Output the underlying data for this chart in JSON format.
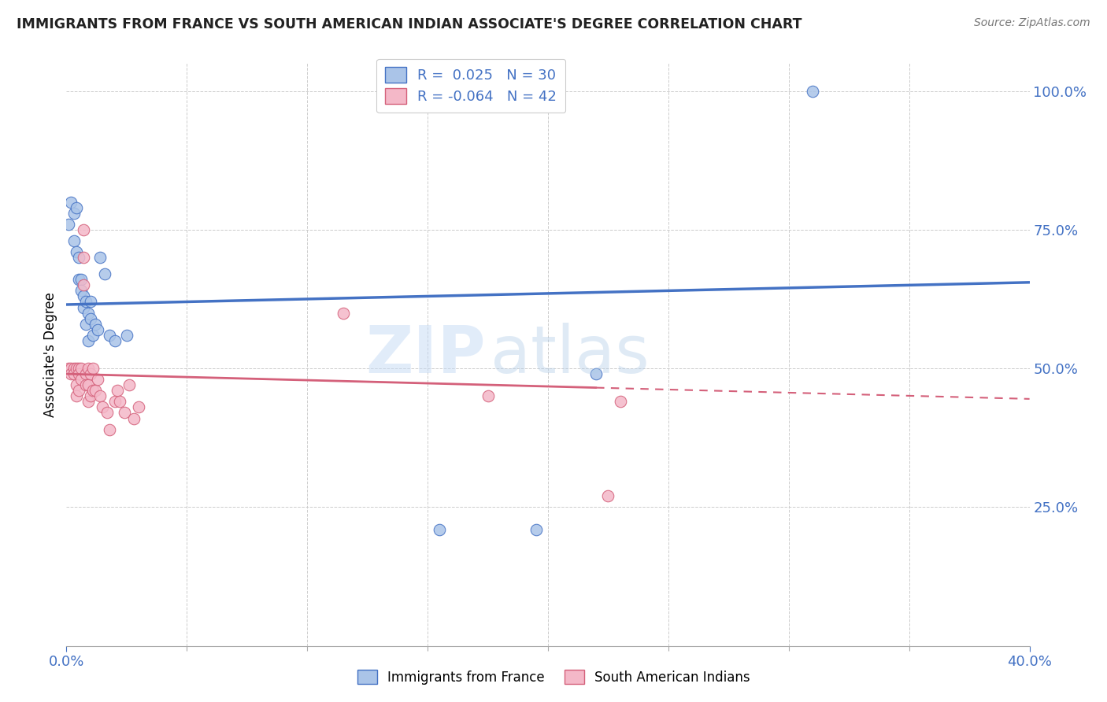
{
  "title": "IMMIGRANTS FROM FRANCE VS SOUTH AMERICAN INDIAN ASSOCIATE'S DEGREE CORRELATION CHART",
  "source": "Source: ZipAtlas.com",
  "ylabel": "Associate's Degree",
  "xlim": [
    0.0,
    0.4
  ],
  "ylim": [
    0.0,
    1.05
  ],
  "xtick_labels": [
    "0.0%",
    "40.0%"
  ],
  "ytick_labels": [
    "25.0%",
    "50.0%",
    "75.0%",
    "100.0%"
  ],
  "ytick_positions": [
    0.25,
    0.5,
    0.75,
    1.0
  ],
  "france_color": "#aac4e8",
  "france_color_line": "#4472c4",
  "india_color": "#f4b8c8",
  "india_color_line": "#d4607a",
  "france_R": 0.025,
  "france_N": 30,
  "india_R": -0.064,
  "india_N": 42,
  "watermark_zip": "ZIP",
  "watermark_atlas": "atlas",
  "france_x": [
    0.001,
    0.002,
    0.003,
    0.003,
    0.004,
    0.004,
    0.005,
    0.005,
    0.006,
    0.006,
    0.007,
    0.007,
    0.008,
    0.008,
    0.009,
    0.009,
    0.01,
    0.01,
    0.011,
    0.012,
    0.013,
    0.014,
    0.016,
    0.018,
    0.02,
    0.025,
    0.155,
    0.195,
    0.22,
    0.31
  ],
  "france_y": [
    0.76,
    0.8,
    0.78,
    0.73,
    0.79,
    0.71,
    0.7,
    0.66,
    0.66,
    0.64,
    0.63,
    0.61,
    0.62,
    0.58,
    0.6,
    0.55,
    0.62,
    0.59,
    0.56,
    0.58,
    0.57,
    0.7,
    0.67,
    0.56,
    0.55,
    0.56,
    0.21,
    0.21,
    0.49,
    1.0
  ],
  "india_x": [
    0.001,
    0.002,
    0.002,
    0.003,
    0.003,
    0.004,
    0.004,
    0.004,
    0.005,
    0.005,
    0.005,
    0.006,
    0.006,
    0.007,
    0.007,
    0.007,
    0.008,
    0.008,
    0.009,
    0.009,
    0.009,
    0.01,
    0.01,
    0.011,
    0.011,
    0.012,
    0.013,
    0.014,
    0.015,
    0.017,
    0.018,
    0.02,
    0.021,
    0.022,
    0.024,
    0.026,
    0.028,
    0.03,
    0.115,
    0.175,
    0.225,
    0.23
  ],
  "india_y": [
    0.5,
    0.5,
    0.49,
    0.5,
    0.49,
    0.5,
    0.47,
    0.45,
    0.5,
    0.49,
    0.46,
    0.5,
    0.48,
    0.75,
    0.7,
    0.65,
    0.49,
    0.47,
    0.5,
    0.47,
    0.44,
    0.49,
    0.45,
    0.5,
    0.46,
    0.46,
    0.48,
    0.45,
    0.43,
    0.42,
    0.39,
    0.44,
    0.46,
    0.44,
    0.42,
    0.47,
    0.41,
    0.43,
    0.6,
    0.45,
    0.27,
    0.44
  ],
  "france_trend_x": [
    0.0,
    0.4
  ],
  "france_trend_y": [
    0.615,
    0.655
  ],
  "india_trend_x": [
    0.0,
    0.4
  ],
  "india_trend_y": [
    0.49,
    0.445
  ]
}
